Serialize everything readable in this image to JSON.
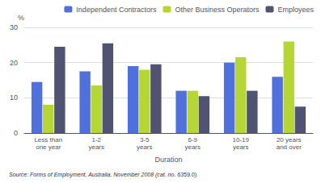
{
  "chart_data": {
    "type": "bar",
    "categories": [
      "Less than\none year",
      "1-2\nyears",
      "3-5\nyears",
      "6-9\nyears",
      "10-19\nyears",
      "20 years\nand over"
    ],
    "series": [
      {
        "name": "Independent Contractors",
        "values": [
          14.5,
          17.5,
          19.0,
          12.0,
          20.0,
          16.0
        ]
      },
      {
        "name": "Other Business Operators",
        "values": [
          8.0,
          13.5,
          18.0,
          12.0,
          21.5,
          26.0
        ]
      },
      {
        "name": "Employees",
        "values": [
          24.5,
          25.5,
          19.5,
          10.5,
          12.0,
          7.5
        ]
      }
    ],
    "xlabel": "Duration",
    "ylabel": "%",
    "annotations": [
      "Source: Forms of Employment, Australia, November 2008 (cat. no. 6359.0)."
    ],
    "ylim": [
      0,
      30
    ],
    "yticks": [
      0,
      10,
      20,
      30
    ],
    "grid": true,
    "legend": "upper right"
  }
}
